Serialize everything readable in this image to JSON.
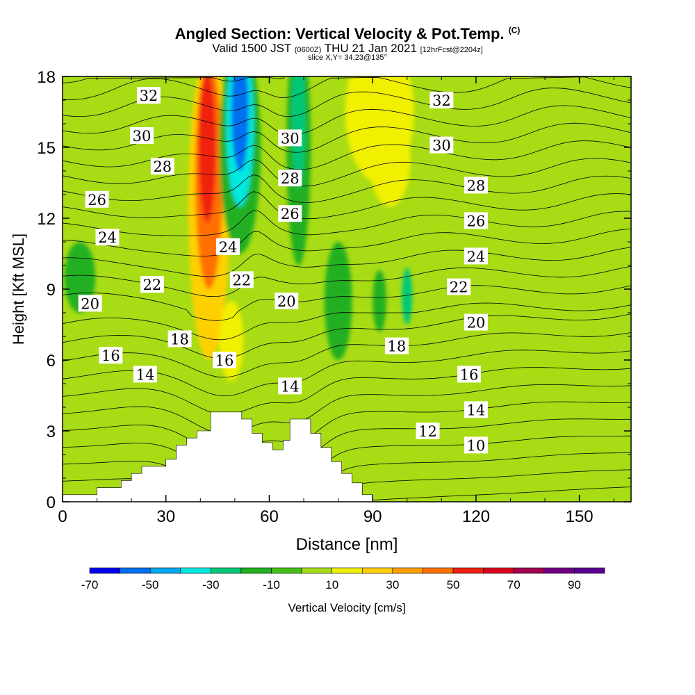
{
  "header": {
    "title_main": "Angled Section: Vertical Velocity & Pot.Temp.",
    "title_copyright": "(C)",
    "valid_a": "Valid 1500 JST",
    "valid_utc": "(0600Z)",
    "valid_b": "THU 21 Jan 2021",
    "valid_fcst": "[12hrFcst@2204z]",
    "slice": "slice X,Y= 34,23@135°"
  },
  "chart_data": {
    "type": "heatmap",
    "xlabel": "Distance [nm]",
    "ylabel": "Height [Kft MSL]",
    "xlim": [
      0,
      165
    ],
    "ylim": [
      0,
      18
    ],
    "xticks": [
      0,
      30,
      60,
      90,
      120,
      150
    ],
    "yticks": [
      0,
      3,
      6,
      9,
      12,
      15,
      18
    ],
    "colorbar": {
      "label": "Vertical Velocity [cm/s]",
      "tick_labels": [
        "-70",
        "-50",
        "-30",
        "-10",
        "10",
        "30",
        "50",
        "70",
        "90"
      ],
      "tick_values": [
        -70,
        -50,
        -30,
        -10,
        10,
        30,
        50,
        70,
        90
      ],
      "range": [
        -70,
        100
      ],
      "colors": [
        "#0000ee",
        "#0070ee",
        "#00a8f0",
        "#00e8e0",
        "#00c878",
        "#20b020",
        "#44c018",
        "#a8dc14",
        "#f0f000",
        "#ffd000",
        "#ffa000",
        "#ff7000",
        "#f02010",
        "#d8001c",
        "#a00050",
        "#700080",
        "#5a0090"
      ]
    },
    "terrain_kft": [
      [
        0,
        0.3
      ],
      [
        10,
        0.3
      ],
      [
        10,
        0.6
      ],
      [
        17,
        0.6
      ],
      [
        17,
        0.9
      ],
      [
        20,
        0.9
      ],
      [
        20,
        1.2
      ],
      [
        23,
        1.2
      ],
      [
        23,
        1.5
      ],
      [
        30,
        1.5
      ],
      [
        30,
        1.8
      ],
      [
        33,
        1.8
      ],
      [
        33,
        2.4
      ],
      [
        36,
        2.4
      ],
      [
        36,
        2.7
      ],
      [
        39,
        2.7
      ],
      [
        39,
        3.0
      ],
      [
        43,
        3.0
      ],
      [
        43,
        3.8
      ],
      [
        52,
        3.8
      ],
      [
        52,
        3.5
      ],
      [
        55,
        3.5
      ],
      [
        55,
        2.9
      ],
      [
        58,
        2.9
      ],
      [
        58,
        2.5
      ],
      [
        61,
        2.5
      ],
      [
        61,
        2.2
      ],
      [
        64,
        2.2
      ],
      [
        64,
        2.6
      ],
      [
        66,
        2.6
      ],
      [
        66,
        3.5
      ],
      [
        72,
        3.5
      ],
      [
        72,
        2.9
      ],
      [
        75,
        2.9
      ],
      [
        75,
        2.3
      ],
      [
        78,
        2.3
      ],
      [
        78,
        1.7
      ],
      [
        81,
        1.7
      ],
      [
        81,
        1.2
      ],
      [
        84,
        1.2
      ],
      [
        84,
        0.8
      ],
      [
        87,
        0.8
      ],
      [
        87,
        0.3
      ],
      [
        90,
        0.3
      ],
      [
        90,
        0
      ]
    ],
    "field_features": [
      {
        "type": "ellipse",
        "cx": 42.5,
        "cy": 12.5,
        "rx": 6,
        "ry": 6.5,
        "value": 20
      },
      {
        "type": "ellipse",
        "cx": 42.5,
        "cy": 13.8,
        "rx": 4,
        "ry": 4.8,
        "value": 40
      },
      {
        "type": "ellipse",
        "cx": 42,
        "cy": 15,
        "rx": 2.5,
        "ry": 3.2,
        "value": 50
      },
      {
        "type": "ellipse",
        "cx": 51.5,
        "cy": 15,
        "rx": 6,
        "ry": 4.5,
        "value": -15
      },
      {
        "type": "ellipse",
        "cx": 51.5,
        "cy": 16,
        "rx": 4,
        "ry": 3.5,
        "value": -35
      },
      {
        "type": "ellipse",
        "cx": 51.5,
        "cy": 16.5,
        "rx": 2.5,
        "ry": 2.5,
        "value": -55
      },
      {
        "type": "ellipse",
        "cx": 68.5,
        "cy": 15,
        "rx": 3.5,
        "ry": 5,
        "value": -15
      },
      {
        "type": "ellipse",
        "cx": 68.5,
        "cy": 16.3,
        "rx": 2,
        "ry": 3,
        "value": -30
      },
      {
        "type": "ellipse",
        "cx": 92,
        "cy": 16.5,
        "rx": 10,
        "ry": 3,
        "value": 15
      },
      {
        "type": "ellipse",
        "cx": 95,
        "cy": 14.5,
        "rx": 6,
        "ry": 2,
        "value": 15
      },
      {
        "type": "ellipse",
        "cx": 49,
        "cy": 6.8,
        "rx": 3.5,
        "ry": 1.7,
        "value": 15
      },
      {
        "type": "ellipse",
        "cx": 163,
        "cy": 6.5,
        "rx": 5,
        "ry": 1.6,
        "value": 5
      },
      {
        "type": "ellipse",
        "cx": 122,
        "cy": 1.3,
        "rx": 5,
        "ry": 0.8,
        "value": 5
      },
      {
        "type": "ellipse",
        "cx": 100,
        "cy": 1.2,
        "rx": 2,
        "ry": 1,
        "value": 5
      },
      {
        "type": "ellipse",
        "cx": 5,
        "cy": 9.5,
        "rx": 4.5,
        "ry": 1.5,
        "value": -15
      },
      {
        "type": "ellipse",
        "cx": 92,
        "cy": 8.5,
        "rx": 2,
        "ry": 1.3,
        "value": -15
      },
      {
        "type": "ellipse",
        "cx": 100,
        "cy": 8.7,
        "rx": 1.5,
        "ry": 1.2,
        "value": -25
      },
      {
        "type": "ellipse",
        "cx": 80,
        "cy": 8.5,
        "rx": 4,
        "ry": 2.5,
        "value": -15
      }
    ],
    "isentrope_labels": [
      {
        "x": 25,
        "y": 17.2,
        "text": "32"
      },
      {
        "x": 23,
        "y": 15.5,
        "text": "30"
      },
      {
        "x": 29,
        "y": 14.2,
        "text": "28"
      },
      {
        "x": 10,
        "y": 12.8,
        "text": "26"
      },
      {
        "x": 13,
        "y": 11.2,
        "text": "24"
      },
      {
        "x": 26,
        "y": 9.2,
        "text": "22"
      },
      {
        "x": 8,
        "y": 8.4,
        "text": "20"
      },
      {
        "x": 14,
        "y": 6.2,
        "text": "16"
      },
      {
        "x": 24,
        "y": 5.4,
        "text": "14"
      },
      {
        "x": 34,
        "y": 6.9,
        "text": "18"
      },
      {
        "x": 47,
        "y": 6.0,
        "text": "16"
      },
      {
        "x": 48,
        "y": 10.8,
        "text": "24"
      },
      {
        "x": 52,
        "y": 9.4,
        "text": "22"
      },
      {
        "x": 66,
        "y": 15.4,
        "text": "30"
      },
      {
        "x": 66,
        "y": 13.7,
        "text": "28"
      },
      {
        "x": 66,
        "y": 12.2,
        "text": "26"
      },
      {
        "x": 65,
        "y": 8.5,
        "text": "20"
      },
      {
        "x": 66,
        "y": 4.9,
        "text": "14"
      },
      {
        "x": 97,
        "y": 6.6,
        "text": "18"
      },
      {
        "x": 106,
        "y": 3.0,
        "text": "12"
      },
      {
        "x": 110,
        "y": 17.0,
        "text": "32"
      },
      {
        "x": 110,
        "y": 15.1,
        "text": "30"
      },
      {
        "x": 115,
        "y": 9.1,
        "text": "22"
      },
      {
        "x": 118,
        "y": 5.4,
        "text": "16"
      },
      {
        "x": 120,
        "y": 13.4,
        "text": "28"
      },
      {
        "x": 120,
        "y": 11.9,
        "text": "26"
      },
      {
        "x": 120,
        "y": 10.4,
        "text": "24"
      },
      {
        "x": 120,
        "y": 7.6,
        "text": "20"
      },
      {
        "x": 120,
        "y": 3.9,
        "text": "14"
      },
      {
        "x": 120,
        "y": 2.4,
        "text": "10"
      }
    ]
  }
}
